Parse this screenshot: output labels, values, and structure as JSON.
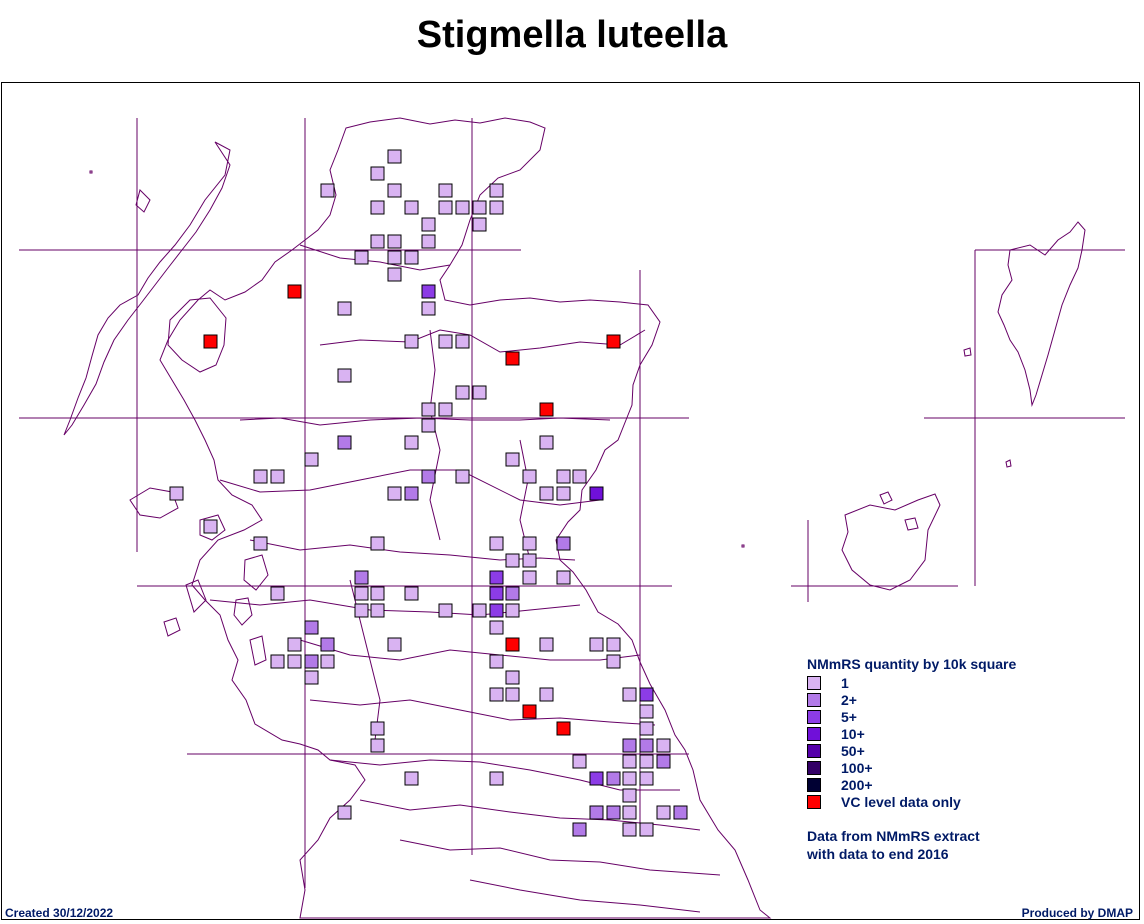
{
  "title": "Stigmella luteella",
  "colors": {
    "outline": "#660066",
    "grid": "#660066",
    "level_1": "#d9b3f2",
    "level_2": "#b27ae8",
    "level_5": "#8c3ce6",
    "level_10": "#7010d9",
    "level_50": "#5500aa",
    "level_100": "#330066",
    "level_200": "#000033",
    "vc_only": "#ff0000"
  },
  "legend": {
    "heading": "NMmRS quantity by 10k square",
    "items": [
      {
        "label": "1",
        "color_key": "level_1"
      },
      {
        "label": "2+",
        "color_key": "level_2"
      },
      {
        "label": "5+",
        "color_key": "level_5"
      },
      {
        "label": "10+",
        "color_key": "level_10"
      },
      {
        "label": "50+",
        "color_key": "level_50"
      },
      {
        "label": "100+",
        "color_key": "level_100"
      },
      {
        "label": "200+",
        "color_key": "level_200"
      },
      {
        "label": "VC level data only",
        "color_key": "vc_only"
      }
    ],
    "note_line1": "Data from NMmRS extract",
    "note_line2": "with data to end 2016"
  },
  "footer": {
    "created": "Created 30/12/2022",
    "produced": "Produced by DMAP"
  }
}
